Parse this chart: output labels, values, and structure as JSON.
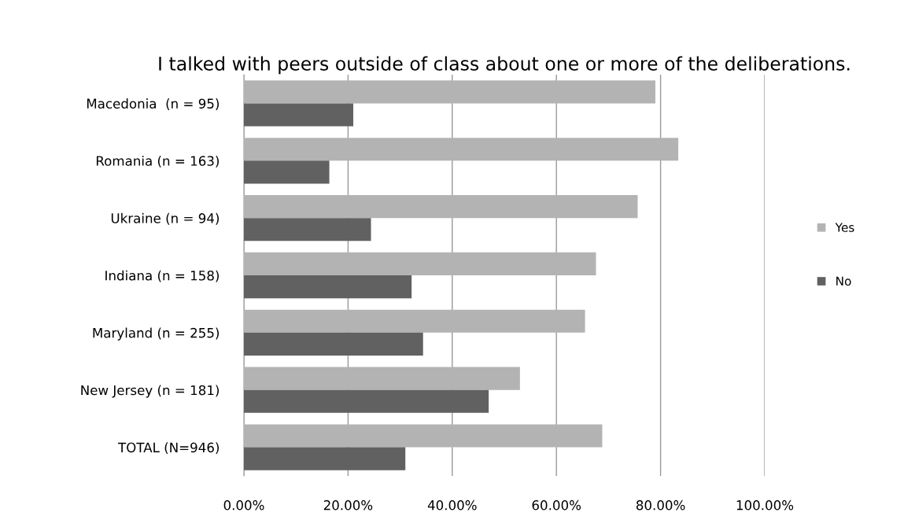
{
  "chart_data": {
    "type": "bar",
    "orientation": "horizontal",
    "title": "I talked with peers outside of class about one or more of the deliberations.",
    "categories": [
      "Macedonia  (n = 95)",
      "Romania (n = 163)",
      "Ukraine (n = 94)",
      "Indiana (n = 158)",
      "Maryland (n = 255)",
      "New Jersey (n = 181)",
      "TOTAL (N=946)"
    ],
    "series": [
      {
        "name": "Yes",
        "color": "#b3b3b3",
        "values": [
          79.0,
          83.4,
          75.6,
          67.6,
          65.5,
          53.0,
          68.8
        ]
      },
      {
        "name": "No",
        "color": "#616161",
        "values": [
          21.0,
          16.4,
          24.4,
          32.2,
          34.4,
          47.0,
          31.0
        ]
      }
    ],
    "xlim": [
      0,
      100
    ],
    "xticks": [
      {
        "value": 0,
        "label": "0.00%"
      },
      {
        "value": 20,
        "label": "20.00%"
      },
      {
        "value": 40,
        "label": "40.00%"
      },
      {
        "value": 60,
        "label": "60.00%"
      },
      {
        "value": 80,
        "label": "80.00%"
      },
      {
        "value": 100,
        "label": "100.00%"
      }
    ],
    "grid": "x",
    "legend": "right"
  }
}
